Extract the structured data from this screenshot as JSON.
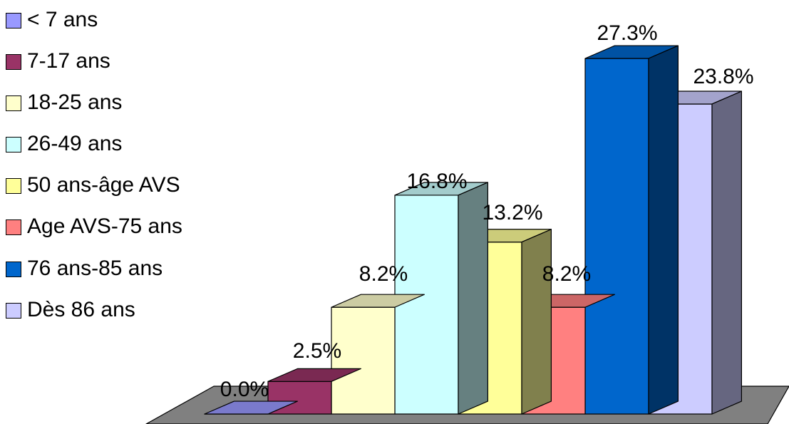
{
  "chart_data": {
    "type": "bar",
    "style": "3d-column",
    "categories": [
      "< 7 ans",
      "7-17 ans",
      "18-25 ans",
      "26-49 ans",
      "50 ans-âge AVS",
      "Age AVS-75 ans",
      "76 ans-85 ans",
      "Dès 86 ans"
    ],
    "values": [
      0.0,
      2.5,
      8.2,
      16.8,
      13.2,
      8.2,
      27.3,
      23.8
    ],
    "value_labels": [
      "0.0%",
      "2.5%",
      "8.2%",
      "16.8%",
      "13.2%",
      "8.2%",
      "27.3%",
      "23.8%"
    ],
    "unit": "%",
    "ylim": [
      0,
      30
    ],
    "title": "",
    "xlabel": "",
    "ylabel": "",
    "grid": false,
    "axes_visible": false,
    "legend_position": "left",
    "colors": [
      "#9999ff",
      "#993366",
      "#ffffcc",
      "#ccffff",
      "#ffff99",
      "#ff8080",
      "#0066cc",
      "#ccccff"
    ],
    "floor_color": "#808080"
  }
}
